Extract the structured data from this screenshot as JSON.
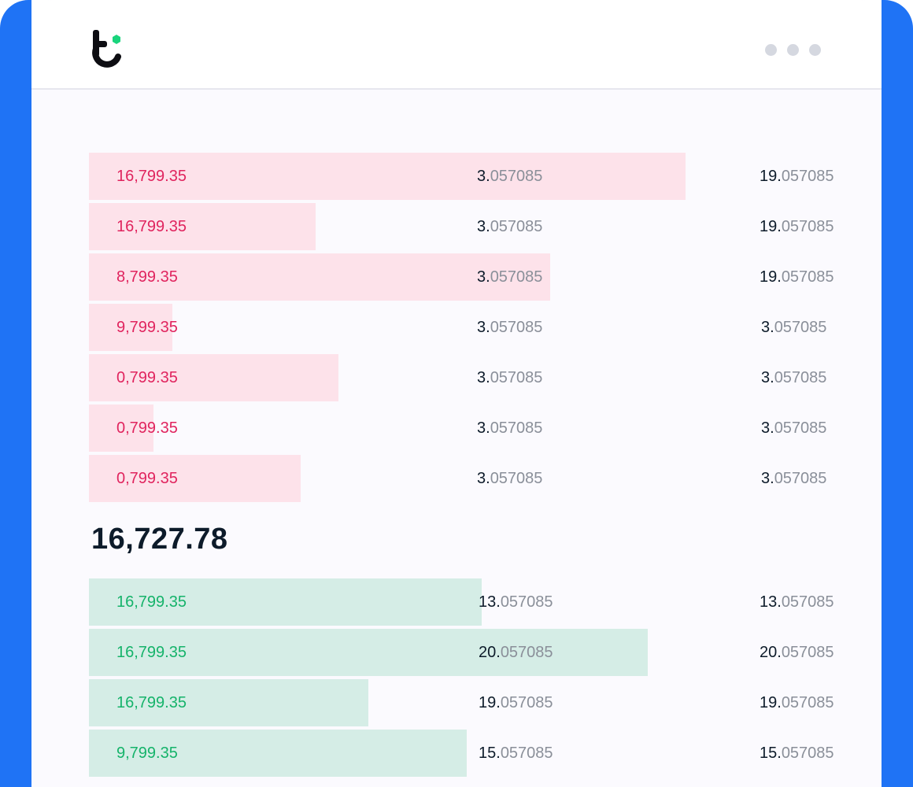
{
  "window": {
    "logo_icon": "brand-logo-icon",
    "menu_icon": "more-dots-icon",
    "accent_color": "#1f73f5"
  },
  "orderbook": {
    "asks": [
      {
        "price": "16,799.35",
        "amount_int": "3.",
        "amount_frac": "057085",
        "total_int": "19.",
        "total_frac": "057085",
        "depth": 0.79
      },
      {
        "price": "16,799.35",
        "amount_int": "3.",
        "amount_frac": "057085",
        "total_int": "19.",
        "total_frac": "057085",
        "depth": 0.3
      },
      {
        "price": "8,799.35",
        "amount_int": "3.",
        "amount_frac": "057085",
        "total_int": "19.",
        "total_frac": "057085",
        "depth": 0.61
      },
      {
        "price": "9,799.35",
        "amount_int": "3.",
        "amount_frac": "057085",
        "total_int": "3.",
        "total_frac": "057085",
        "depth": 0.11
      },
      {
        "price": "0,799.35",
        "amount_int": "3.",
        "amount_frac": "057085",
        "total_int": "3.",
        "total_frac": "057085",
        "depth": 0.33
      },
      {
        "price": "0,799.35",
        "amount_int": "3.",
        "amount_frac": "057085",
        "total_int": "3.",
        "total_frac": "057085",
        "depth": 0.085
      },
      {
        "price": "0,799.35",
        "amount_int": "3.",
        "amount_frac": "057085",
        "total_int": "3.",
        "total_frac": "057085",
        "depth": 0.28
      }
    ],
    "mid_price": "16,727.78",
    "bids": [
      {
        "price": "16,799.35",
        "amount_int": "13.",
        "amount_frac": "057085",
        "total_int": "13.",
        "total_frac": "057085",
        "depth": 0.52
      },
      {
        "price": "16,799.35",
        "amount_int": "20.",
        "amount_frac": "057085",
        "total_int": "20.",
        "total_frac": "057085",
        "depth": 0.74
      },
      {
        "price": "16,799.35",
        "amount_int": "19.",
        "amount_frac": "057085",
        "total_int": "19.",
        "total_frac": "057085",
        "depth": 0.37
      },
      {
        "price": "9,799.35",
        "amount_int": "15.",
        "amount_frac": "057085",
        "total_int": "15.",
        "total_frac": "057085",
        "depth": 0.5
      }
    ],
    "colors": {
      "ask_bar": "#fde2ea",
      "ask_text": "#e0245e",
      "bid_bar": "#d5ede6",
      "bid_text": "#15b36a"
    }
  }
}
